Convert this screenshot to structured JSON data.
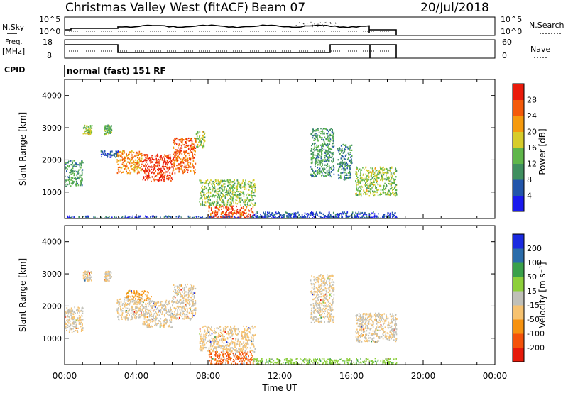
{
  "header": {
    "station": "Christmas Valley West (fitACF)",
    "beam": "Beam 07",
    "date": "20/Jul/2018"
  },
  "top_panels": {
    "nsky": {
      "label": "N.Sky",
      "tick_top": "10^5",
      "tick_bottom": "10^0",
      "right_label": "N.Search",
      "right_tick_top": "10^5",
      "right_tick_bottom": "10^0"
    },
    "freq": {
      "label_1": "Freq.",
      "label_2": "[MHz]",
      "tick_top": "18",
      "tick_bottom": "8",
      "right_label": "Nave",
      "right_tick_top": "60",
      "right_tick_bottom": "0"
    },
    "cpid": {
      "label": "CPID",
      "value": "normal (fast) 151 RF"
    }
  },
  "chart_data": [
    {
      "type": "heatmap",
      "title": "",
      "xlabel": "Time UT",
      "ylabel": "Slant Range [km]",
      "xlim": [
        0,
        24
      ],
      "ylim": [
        180,
        4500
      ],
      "x_ticks": [
        "00:00",
        "04:00",
        "08:00",
        "12:00",
        "16:00",
        "20:00",
        "00:00"
      ],
      "x_tick_values": [
        0,
        4,
        8,
        12,
        16,
        20,
        24
      ],
      "y_ticks": [
        "1000",
        "2000",
        "3000",
        "4000"
      ],
      "y_tick_values": [
        1000,
        2000,
        3000,
        4000
      ],
      "colorbar": {
        "label": "Power [dB]",
        "ticks": [
          "4",
          "8",
          "12",
          "16",
          "20",
          "24",
          "28"
        ],
        "range": [
          0,
          32
        ],
        "colors": [
          "#1a1aee",
          "#2255aa",
          "#3f8f5f",
          "#5fb64a",
          "#d7cc2a",
          "#f59a0e",
          "#f45a0a",
          "#ea1a0a"
        ]
      },
      "regions": [
        {
          "t": [
            0.0,
            1.0
          ],
          "r": [
            1200,
            2000
          ],
          "level": 0.35
        },
        {
          "t": [
            1.0,
            1.5
          ],
          "r": [
            2800,
            3100
          ],
          "level": 0.5
        },
        {
          "t": [
            2.2,
            2.6
          ],
          "r": [
            2800,
            3100
          ],
          "level": 0.4
        },
        {
          "t": [
            2.0,
            3.0
          ],
          "r": [
            2100,
            2300
          ],
          "level": 0.2
        },
        {
          "t": [
            2.9,
            4.3
          ],
          "r": [
            1600,
            2300
          ],
          "level": 0.72
        },
        {
          "t": [
            4.3,
            6.0
          ],
          "r": [
            1350,
            2200
          ],
          "level": 0.9
        },
        {
          "t": [
            6.0,
            7.3
          ],
          "r": [
            1600,
            2700
          ],
          "level": 0.8
        },
        {
          "t": [
            7.3,
            7.8
          ],
          "r": [
            2400,
            2900
          ],
          "level": 0.5
        },
        {
          "t": [
            7.5,
            10.6
          ],
          "r": [
            600,
            1400
          ],
          "level": 0.45
        },
        {
          "t": [
            8.0,
            10.5
          ],
          "r": [
            200,
            600
          ],
          "level": 0.85
        },
        {
          "t": [
            10.5,
            18.5
          ],
          "r": [
            180,
            400
          ],
          "level": 0.18
        },
        {
          "t": [
            13.7,
            15.0
          ],
          "r": [
            1500,
            3000
          ],
          "level": 0.35
        },
        {
          "t": [
            15.2,
            16.0
          ],
          "r": [
            1400,
            2500
          ],
          "level": 0.3
        },
        {
          "t": [
            16.2,
            17.5
          ],
          "r": [
            900,
            1800
          ],
          "level": 0.5
        },
        {
          "t": [
            17.5,
            18.5
          ],
          "r": [
            900,
            1800
          ],
          "level": 0.45
        },
        {
          "t": [
            0.0,
            18.5
          ],
          "r": [
            180,
            280
          ],
          "level": 0.15
        }
      ]
    },
    {
      "type": "heatmap",
      "title": "",
      "xlabel": "Time UT",
      "ylabel": "Slant Range [km]",
      "xlim": [
        0,
        24
      ],
      "ylim": [
        180,
        4500
      ],
      "x_ticks": [
        "00:00",
        "04:00",
        "08:00",
        "12:00",
        "16:00",
        "20:00",
        "00:00"
      ],
      "x_tick_values": [
        0,
        4,
        8,
        12,
        16,
        20,
        24
      ],
      "y_ticks": [
        "1000",
        "2000",
        "3000",
        "4000"
      ],
      "y_tick_values": [
        1000,
        2000,
        3000,
        4000
      ],
      "colorbar": {
        "label": "Velocity [m s⁻¹]",
        "ticks": [
          "-200",
          "-100",
          "-50",
          "-15",
          "15",
          "50",
          "100",
          "200"
        ],
        "colors": [
          "#e61a0a",
          "#f4520a",
          "#f69210",
          "#f6c270",
          "#c0c0b8",
          "#8dcf3a",
          "#3aa04a",
          "#2a6caa",
          "#1a2ae0"
        ]
      },
      "regions": [
        {
          "t": [
            0.0,
            1.0
          ],
          "r": [
            1200,
            2000
          ],
          "level": 0.45
        },
        {
          "t": [
            1.0,
            1.5
          ],
          "r": [
            2800,
            3100
          ],
          "level": 0.45
        },
        {
          "t": [
            2.2,
            2.6
          ],
          "r": [
            2800,
            3100
          ],
          "level": 0.45
        },
        {
          "t": [
            2.9,
            4.3
          ],
          "r": [
            1600,
            2300
          ],
          "level": 0.45
        },
        {
          "t": [
            4.3,
            6.0
          ],
          "r": [
            1350,
            2200
          ],
          "level": 0.45
        },
        {
          "t": [
            6.0,
            7.3
          ],
          "r": [
            1600,
            2700
          ],
          "level": 0.45
        },
        {
          "t": [
            3.4,
            4.8
          ],
          "r": [
            2200,
            2500
          ],
          "level": 0.3
        },
        {
          "t": [
            7.5,
            10.6
          ],
          "r": [
            600,
            1400
          ],
          "level": 0.42
        },
        {
          "t": [
            8.0,
            10.5
          ],
          "r": [
            200,
            600
          ],
          "level": 0.18
        },
        {
          "t": [
            10.5,
            18.5
          ],
          "r": [
            180,
            400
          ],
          "level": 0.62
        },
        {
          "t": [
            13.7,
            15.0
          ],
          "r": [
            1500,
            3000
          ],
          "level": 0.45
        },
        {
          "t": [
            16.2,
            18.5
          ],
          "r": [
            900,
            1800
          ],
          "level": 0.45
        }
      ]
    }
  ]
}
